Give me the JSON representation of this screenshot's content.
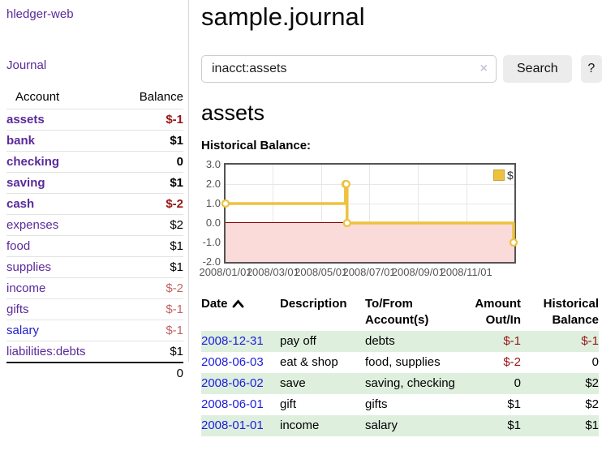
{
  "sidebar": {
    "app_title": "hledger-web",
    "nav": {
      "journal_label": "Journal"
    },
    "table": {
      "account_header": "Account",
      "balance_header": "Balance",
      "accounts": [
        {
          "name": "assets",
          "indent": 0,
          "bold": true,
          "balance": "$-1",
          "balance_class": "neg-strong"
        },
        {
          "name": "bank",
          "indent": 1,
          "bold": true,
          "balance": "$1",
          "balance_class": "b"
        },
        {
          "name": "checking",
          "indent": 2,
          "bold": true,
          "balance": "0",
          "balance_class": "b"
        },
        {
          "name": "saving",
          "indent": 2,
          "bold": true,
          "balance": "$1",
          "balance_class": "b"
        },
        {
          "name": "cash",
          "indent": 1,
          "bold": true,
          "balance": "$-2",
          "balance_class": "neg-strong"
        },
        {
          "name": "expenses",
          "indent": 0,
          "bold": false,
          "balance": "$2",
          "balance_class": ""
        },
        {
          "name": "food",
          "indent": 1,
          "bold": false,
          "balance": "$1",
          "balance_class": ""
        },
        {
          "name": "supplies",
          "indent": 1,
          "bold": false,
          "balance": "$1",
          "balance_class": ""
        },
        {
          "name": "income",
          "indent": 0,
          "bold": false,
          "balance": "$-2",
          "balance_class": "neg-light"
        },
        {
          "name": "gifts",
          "indent": 1,
          "bold": false,
          "balance": "$-1",
          "balance_class": "neg-light"
        },
        {
          "name": "salary",
          "indent": 1,
          "bold": false,
          "balance": "$-1",
          "balance_class": "neg-light",
          "link_style": "unvisited"
        },
        {
          "name": "liabilities:debts",
          "indent": 0,
          "bold": false,
          "balance": "$1",
          "balance_class": ""
        }
      ],
      "total": "0"
    }
  },
  "header": {
    "title": "sample.journal"
  },
  "search": {
    "query": "inacct:assets",
    "clear_icon": "×",
    "search_label": "Search",
    "help_label": "?"
  },
  "account_page": {
    "heading": "assets",
    "chart_label": "Historical Balance:"
  },
  "chart_data": {
    "type": "line",
    "step": true,
    "title": "Historical Balance:",
    "series": [
      {
        "name": "$",
        "color": "#edc240",
        "points": [
          [
            "2008-01-01",
            1
          ],
          [
            "2008-06-01",
            2
          ],
          [
            "2008-06-02",
            2
          ],
          [
            "2008-06-03",
            0
          ],
          [
            "2008-12-31",
            -1
          ]
        ]
      }
    ],
    "ylim": [
      -2,
      3
    ],
    "yticks": [
      "3.0",
      "2.0",
      "1.0",
      "0.0",
      "-1.0",
      "-2.0"
    ],
    "ytick_values": [
      3,
      2,
      1,
      0,
      -1,
      -2
    ],
    "xlim": [
      "2008-01-01",
      "2009-01-01"
    ],
    "xticks": [
      {
        "date": "2008-01-01",
        "label": "2008/01/01"
      },
      {
        "date": "2008-03-01",
        "label": "2008/03/01"
      },
      {
        "date": "2008-05-01",
        "label": "2008/05/01"
      },
      {
        "date": "2008-07-01",
        "label": "2008/07/01"
      },
      {
        "date": "2008-09-01",
        "label": "2008/09/01"
      },
      {
        "date": "2008-11-01",
        "label": "2008/11/01"
      }
    ],
    "grid": true,
    "legend_position": "top-right",
    "negative_region_fill": "#fbdada",
    "zero_line_color": "#8b0000"
  },
  "register": {
    "columns": {
      "date": "Date",
      "description": "Description",
      "accounts": "To/From Account(s)",
      "amount": "Amount Out/In",
      "balance": "Historical Balance"
    },
    "sort": {
      "column": "date",
      "direction": "ascending"
    },
    "rows": [
      {
        "date": "2008-12-31",
        "description": "pay off",
        "accounts": "debts",
        "amount": "$-1",
        "amount_negative": true,
        "balance": "$-1",
        "balance_negative": true
      },
      {
        "date": "2008-06-03",
        "description": "eat & shop",
        "accounts": "food, supplies",
        "amount": "$-2",
        "amount_negative": true,
        "balance": "0",
        "balance_negative": false
      },
      {
        "date": "2008-06-02",
        "description": "save",
        "accounts": "saving, checking",
        "amount": "0",
        "amount_negative": false,
        "balance": "$2",
        "balance_negative": false
      },
      {
        "date": "2008-06-01",
        "description": "gift",
        "accounts": "gifts",
        "amount": "$1",
        "amount_negative": false,
        "balance": "$2",
        "balance_negative": false
      },
      {
        "date": "2008-01-01",
        "description": "income",
        "accounts": "salary",
        "amount": "$1",
        "amount_negative": false,
        "balance": "$1",
        "balance_negative": false
      }
    ]
  },
  "colors": {
    "link_purple": "#5a2a9b",
    "link_blue": "#1d1ddd",
    "negative_strong": "#991515",
    "negative_light": "#c06565",
    "zebra_green": "#deefde",
    "series_gold": "#edc240"
  }
}
